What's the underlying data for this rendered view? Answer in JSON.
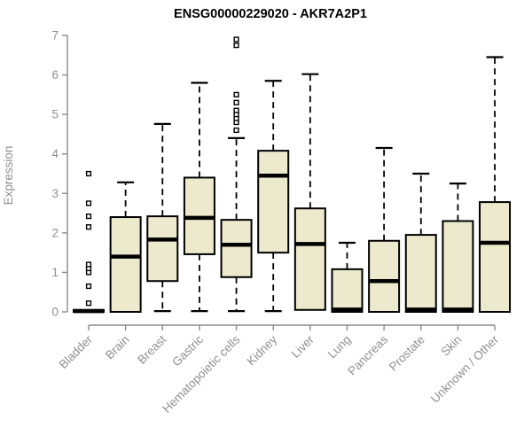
{
  "chart_data": {
    "type": "box",
    "title": "ENSG00000229020 - AKR7A2P1",
    "xlabel": "",
    "ylabel": "Expression",
    "ylim": [
      0,
      7
    ],
    "yticks": [
      0,
      1,
      2,
      3,
      4,
      5,
      6,
      7
    ],
    "grid": false,
    "legend": "none",
    "categories": [
      "Bladder",
      "Brain",
      "Breast",
      "Gastric",
      "Hematopoietic cells",
      "Kidney",
      "Liver",
      "Lung",
      "Pancreas",
      "Prostate",
      "Skin",
      "Unknown / Other"
    ],
    "series": [
      {
        "category": "Bladder",
        "whisker_low": 0,
        "q1": 0,
        "median": 0.02,
        "q3": 0.05,
        "whisker_high": 0.05,
        "outliers": [
          0.22,
          0.65,
          1.0,
          1.1,
          1.2,
          2.15,
          2.42,
          2.75,
          3.5
        ]
      },
      {
        "category": "Brain",
        "whisker_low": 0,
        "q1": 0,
        "median": 1.4,
        "q3": 2.4,
        "whisker_high": 3.28,
        "outliers": []
      },
      {
        "category": "Breast",
        "whisker_low": 0.02,
        "q1": 0.78,
        "median": 1.83,
        "q3": 2.42,
        "whisker_high": 4.76,
        "outliers": []
      },
      {
        "category": "Gastric",
        "whisker_low": 0.02,
        "q1": 1.46,
        "median": 2.38,
        "q3": 3.4,
        "whisker_high": 5.8,
        "outliers": []
      },
      {
        "category": "Hematopoietic cells",
        "whisker_low": 0.02,
        "q1": 0.88,
        "median": 1.7,
        "q3": 2.33,
        "whisker_high": 4.4,
        "outliers": [
          4.6,
          4.8,
          4.9,
          5.0,
          5.1,
          5.3,
          5.5,
          6.75,
          6.9
        ]
      },
      {
        "category": "Kidney",
        "whisker_low": 0.02,
        "q1": 1.5,
        "median": 3.45,
        "q3": 4.08,
        "whisker_high": 5.85,
        "outliers": []
      },
      {
        "category": "Liver",
        "whisker_low": 0.05,
        "q1": 0.05,
        "median": 1.72,
        "q3": 2.62,
        "whisker_high": 6.02,
        "outliers": []
      },
      {
        "category": "Lung",
        "whisker_low": 0,
        "q1": 0,
        "median": 0.06,
        "q3": 1.08,
        "whisker_high": 1.75,
        "outliers": []
      },
      {
        "category": "Pancreas",
        "whisker_low": 0,
        "q1": 0,
        "median": 0.78,
        "q3": 1.8,
        "whisker_high": 4.15,
        "outliers": []
      },
      {
        "category": "Prostate",
        "whisker_low": 0,
        "q1": 0,
        "median": 0.06,
        "q3": 1.95,
        "whisker_high": 3.5,
        "outliers": []
      },
      {
        "category": "Skin",
        "whisker_low": 0,
        "q1": 0,
        "median": 0.06,
        "q3": 2.3,
        "whisker_high": 3.25,
        "outliers": []
      },
      {
        "category": "Unknown / Other",
        "whisker_low": 0,
        "q1": 0,
        "median": 1.75,
        "q3": 2.78,
        "whisker_high": 6.45,
        "outliers": []
      }
    ],
    "colors": {
      "background": "#FFFFFF",
      "box_fill": "#EDE9CC",
      "box_border": "#000000",
      "median": "#000000",
      "whisker": "#000000",
      "outlier_stroke": "#000000",
      "outlier_fill": "#FFFFFF",
      "axis_line": "#8A8A8A",
      "axis_text": "#8F8F8F",
      "title_text": "#000000"
    }
  }
}
